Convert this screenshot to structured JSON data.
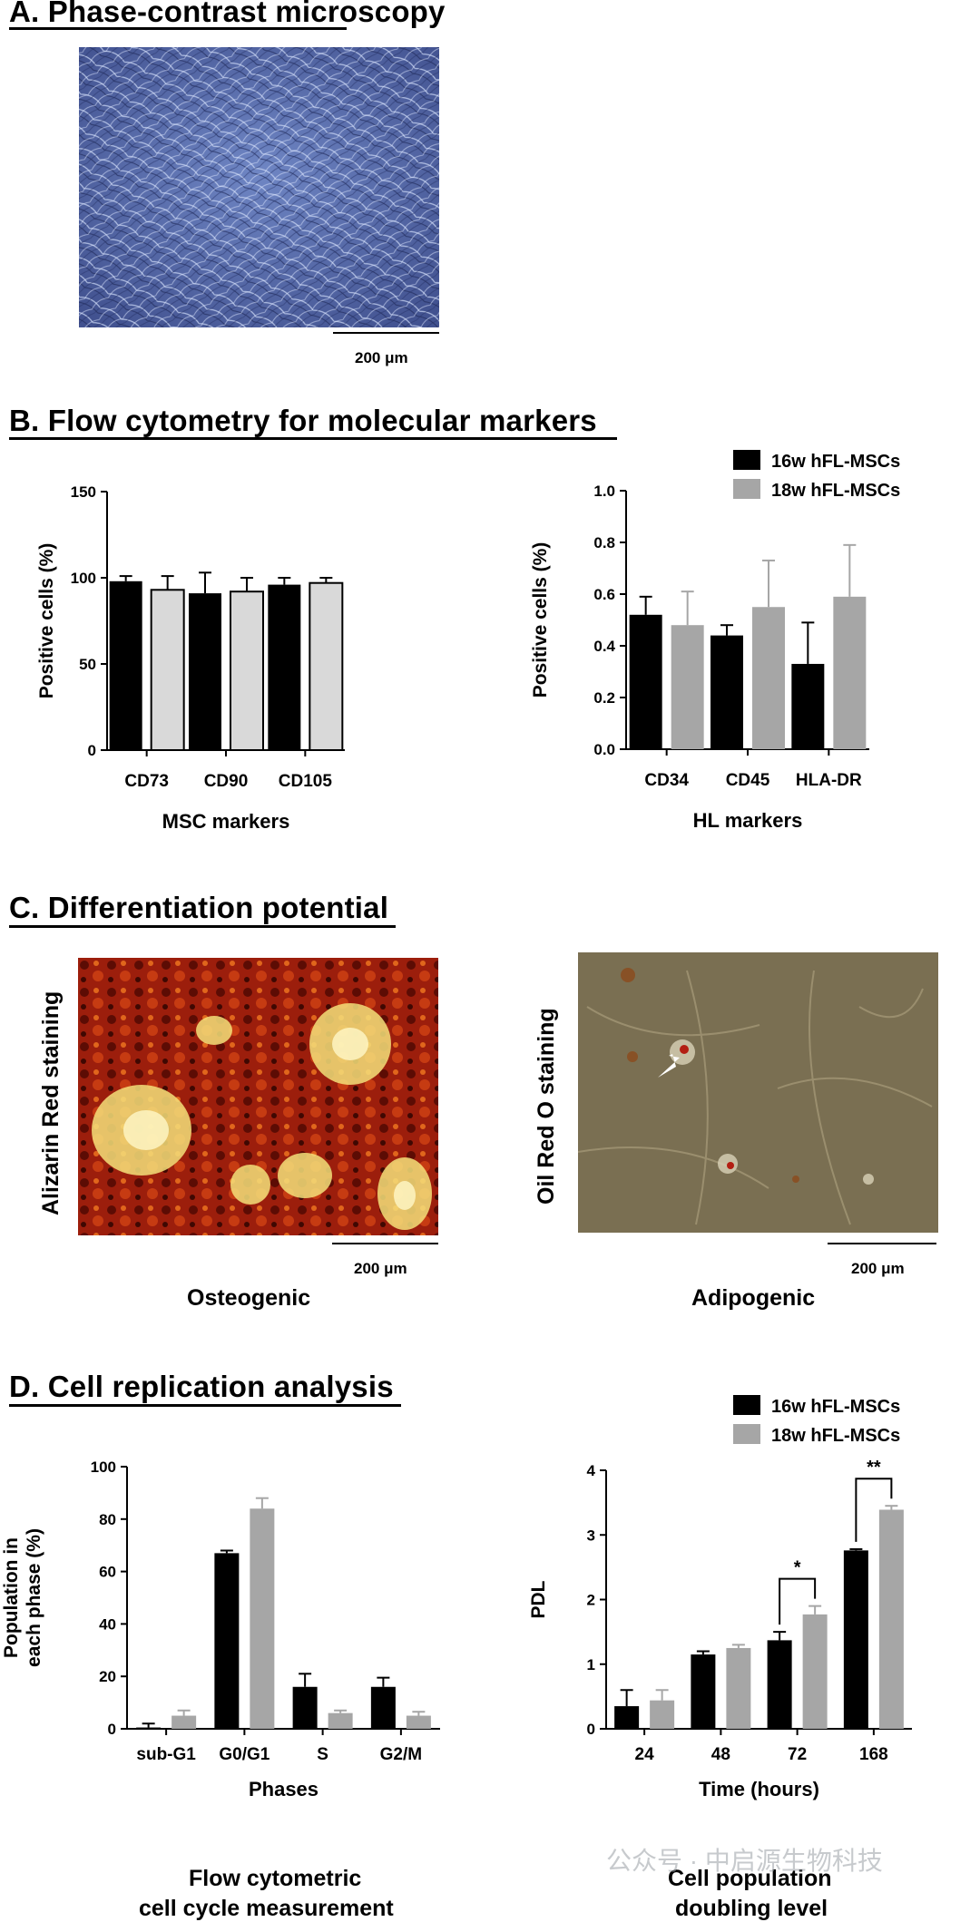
{
  "panels": {
    "a": {
      "heading": "A. Phase-contrast microscopy",
      "scalebar_label": "200 μm"
    },
    "b": {
      "heading": "B. Flow cytometry for molecular markers"
    },
    "c": {
      "heading": "C. Differentiation potential",
      "left_ylabel": "Alizarin Red staining",
      "right_ylabel": "Oil Red O staining",
      "left_caption": "Osteogenic",
      "right_caption": "Adipogenic",
      "left_scalebar": "200 μm",
      "right_scalebar": "200 μm"
    },
    "d": {
      "heading": "D. Cell replication analysis",
      "left_caption_line1": "Flow cytometric",
      "left_caption_line2": "cell cycle measurement",
      "right_caption_line1": "Cell population",
      "right_caption_line2": "doubling level"
    }
  },
  "watermark": "公众号 · 中启源生物科技",
  "colors": {
    "series_16w": "#000000",
    "series_18w_b1": "#d9d9d9",
    "series_18w": "#a6a6a6"
  },
  "chart_data": [
    {
      "id": "msc",
      "type": "bar",
      "categories": [
        "CD73",
        "CD90",
        "CD105"
      ],
      "series": [
        {
          "values": [
            98,
            91,
            96
          ],
          "errors": [
            3,
            12,
            4
          ]
        },
        {
          "values": [
            93,
            92,
            97
          ],
          "errors": [
            8,
            8,
            3
          ]
        }
      ],
      "xlabel": "MSC markers",
      "ylabel": "Positive cells (%)",
      "ylim": [
        0,
        150
      ],
      "yticks": [
        "0",
        "50",
        "100",
        "150"
      ],
      "ytick_values": [
        0,
        50,
        100,
        150
      ],
      "legend": []
    },
    {
      "id": "hl",
      "type": "bar",
      "categories": [
        "CD34",
        "CD45",
        "HLA-DR"
      ],
      "series": [
        {
          "name": "16w hFL-MSCs",
          "values": [
            0.52,
            0.44,
            0.33
          ],
          "errors": [
            0.07,
            0.04,
            0.16
          ]
        },
        {
          "name": "18w hFL-MSCs",
          "values": [
            0.48,
            0.55,
            0.59
          ],
          "errors": [
            0.13,
            0.18,
            0.2
          ]
        }
      ],
      "xlabel": "HL markers",
      "ylabel": "Positive cells (%)",
      "ylim": [
        0,
        1.0
      ],
      "yticks": [
        "0.0",
        "0.2",
        "0.4",
        "0.6",
        "0.8",
        "1.0"
      ],
      "ytick_values": [
        0,
        0.2,
        0.4,
        0.6,
        0.8,
        1.0
      ],
      "legend": [
        "16w hFL-MSCs",
        "18w hFL-MSCs"
      ]
    },
    {
      "id": "cycle",
      "type": "bar",
      "categories": [
        "sub-G1",
        "G0/G1",
        "S",
        "G2/M"
      ],
      "series": [
        {
          "values": [
            0.5,
            67,
            16,
            16
          ],
          "errors": [
            1.5,
            1,
            5,
            3.5
          ]
        },
        {
          "values": [
            5,
            84,
            6,
            5
          ],
          "errors": [
            2,
            4,
            1,
            1.5
          ]
        }
      ],
      "xlabel": "Phases",
      "ylabel_line1": "Population in",
      "ylabel_line2": "each phase (%)",
      "ylim": [
        0,
        100
      ],
      "yticks": [
        "0",
        "20",
        "40",
        "60",
        "80",
        "100"
      ],
      "ytick_values": [
        0,
        20,
        40,
        60,
        80,
        100
      ],
      "legend": []
    },
    {
      "id": "pdl",
      "type": "bar",
      "categories": [
        "24",
        "48",
        "72",
        "168"
      ],
      "series": [
        {
          "name": "16w hFL-MSCs",
          "values": [
            0.35,
            1.15,
            1.37,
            2.76
          ],
          "errors": [
            0.25,
            0.05,
            0.13,
            0.02
          ]
        },
        {
          "name": "18w hFL-MSCs",
          "values": [
            0.44,
            1.25,
            1.77,
            3.39
          ],
          "errors": [
            0.16,
            0.05,
            0.13,
            0.06
          ]
        }
      ],
      "xlabel": "Time (hours)",
      "ylabel": "PDL",
      "ylim": [
        0,
        4
      ],
      "yticks": [
        "0",
        "1",
        "2",
        "3",
        "4"
      ],
      "ytick_values": [
        0,
        1,
        2,
        3,
        4
      ],
      "legend": [
        "16w hFL-MSCs",
        "18w hFL-MSCs"
      ],
      "annotations": [
        {
          "category": "72",
          "text": "*"
        },
        {
          "category": "168",
          "text": "**"
        }
      ]
    }
  ]
}
